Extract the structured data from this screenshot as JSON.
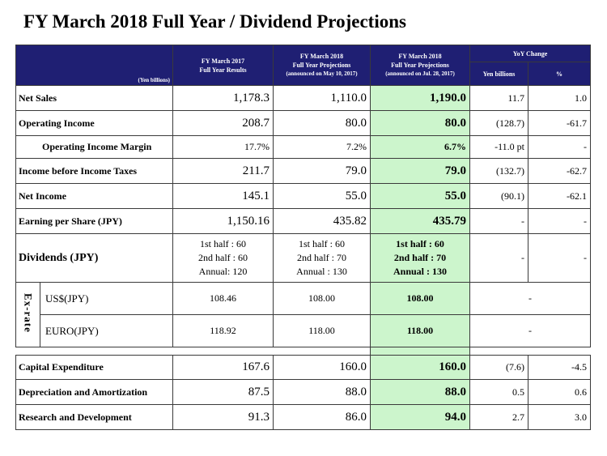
{
  "title": "FY March 2018 Full Year / Dividend Projections",
  "header": {
    "unit": "(Yen billions)",
    "col1": [
      "FY March 2017",
      "Full Year Results"
    ],
    "col2": [
      "FY March 2018",
      "Full Year Projections",
      "(announced on May 10, 2017)"
    ],
    "col3": [
      "FY March 2018",
      "Full Year Projections",
      "(announced on Jul. 28, 2017)"
    ],
    "yoy": "YoY Change",
    "yoy_yen": "Yen billions",
    "yoy_pct": "%"
  },
  "rows": [
    {
      "label": "Net Sales",
      "c1": "1,178.3",
      "c2": "1,110.0",
      "c3": "1,190.0",
      "yen": "11.7",
      "pct": "1.0"
    },
    {
      "label": "Operating Income",
      "c1": "208.7",
      "c2": "80.0",
      "c3": "80.0",
      "yen": "(128.7)",
      "pct": "-61.7"
    },
    {
      "label": "Operating Income Margin",
      "c1": "17.7%",
      "c2": "7.2%",
      "c3": "6.7%",
      "yen": "-11.0 pt",
      "pct": "-"
    },
    {
      "label": "Income before Income Taxes",
      "c1": "211.7",
      "c2": "79.0",
      "c3": "79.0",
      "yen": "(132.7)",
      "pct": "-62.7"
    },
    {
      "label": "Net Income",
      "c1": "145.1",
      "c2": "55.0",
      "c3": "55.0",
      "yen": "(90.1)",
      "pct": "-62.1"
    },
    {
      "label": "Earning per Share (JPY)",
      "c1": "1,150.16",
      "c2": "435.82",
      "c3": "435.79",
      "yen": "-",
      "pct": "-"
    }
  ],
  "dividends": {
    "label": "Dividends (JPY)",
    "c1": [
      "1st half : 60",
      "2nd half : 60",
      "Annual: 120"
    ],
    "c2": [
      "1st half : 60",
      "2nd half : 70",
      "Annual : 130"
    ],
    "c3": [
      "1st half : 60",
      "2nd half : 70",
      "Annual : 130"
    ],
    "yen": "-",
    "pct": "-"
  },
  "exrate": {
    "label": "Ex-rate",
    "usd": {
      "label": "US$(JPY)",
      "c1": "108.46",
      "c2": "108.00",
      "c3": "108.00",
      "yoy": "-"
    },
    "euro": {
      "label": "EURO(JPY)",
      "c1": "118.92",
      "c2": "118.00",
      "c3": "118.00",
      "yoy": "-"
    }
  },
  "rows2": [
    {
      "label": "Capital Expenditure",
      "c1": "167.6",
      "c2": "160.0",
      "c3": "160.0",
      "yen": "(7.6)",
      "pct": "-4.5"
    },
    {
      "label": "Depreciation and Amortization",
      "c1": "87.5",
      "c2": "88.0",
      "c3": "88.0",
      "yen": "0.5",
      "pct": "0.6"
    },
    {
      "label": "Research and Development",
      "c1": "91.3",
      "c2": "86.0",
      "c3": "94.0",
      "yen": "2.7",
      "pct": "3.0"
    }
  ]
}
